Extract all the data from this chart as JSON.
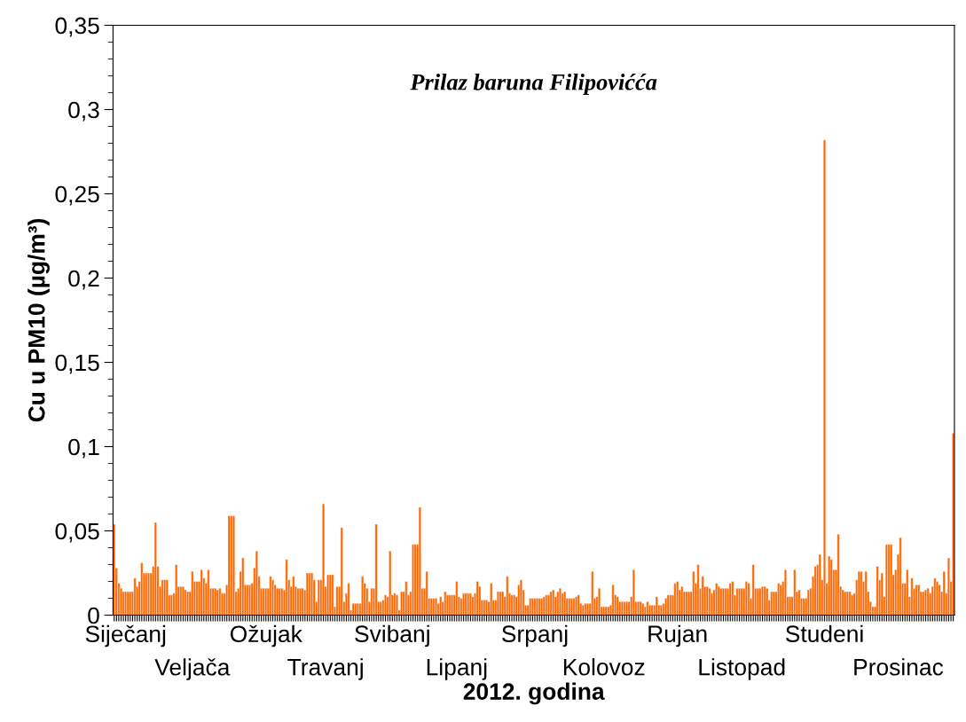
{
  "chart_data": {
    "type": "bar",
    "title": "Prilaz baruna Filipovićća",
    "xlabel": "2012. godina",
    "ylabel": "Cu u PM10 (µg/m³)",
    "color": "#ff6600",
    "ylim": [
      0,
      0.35
    ],
    "yticks": [
      0,
      {
        "value": 0.05,
        "label": "0,05"
      },
      {
        "value": 0.1,
        "label": "0,1"
      },
      {
        "value": 0.15,
        "label": "0,15"
      },
      {
        "value": 0.2,
        "label": "0,2"
      },
      {
        "value": 0.25,
        "label": "0,25"
      },
      {
        "value": 0.3,
        "label": "0,3"
      },
      {
        "value": 0.35,
        "label": "0,35"
      }
    ],
    "grid": false,
    "legend": false,
    "categories": [
      null,
      null,
      null,
      null,
      null,
      "Siječanj",
      null,
      null,
      null,
      null,
      null,
      null,
      null,
      null,
      null,
      null,
      null,
      null,
      null,
      null,
      null,
      null,
      null,
      null,
      null,
      null,
      null,
      null,
      null,
      null,
      null,
      null,
      null,
      null,
      "Veljača",
      null,
      null,
      null,
      null,
      null,
      null,
      null,
      null,
      null,
      null,
      null,
      null,
      null,
      null,
      null,
      null,
      null,
      null,
      null,
      null,
      null,
      null,
      null,
      null,
      null,
      null,
      null,
      null,
      null,
      null,
      null,
      "Ožujak",
      null,
      null,
      null,
      null,
      null,
      null,
      null,
      null,
      null,
      null,
      null,
      null,
      null,
      null,
      null,
      null,
      null,
      null,
      null,
      null,
      null,
      null,
      null,
      null,
      null,
      "Travanj",
      null,
      null,
      null,
      null,
      null,
      null,
      null,
      null,
      null,
      null,
      null,
      null,
      null,
      null,
      null,
      null,
      null,
      null,
      null,
      null,
      null,
      null,
      null,
      null,
      null,
      null,
      null,
      null,
      "Svibanj",
      null,
      null,
      null,
      null,
      null,
      null,
      null,
      null,
      null,
      null,
      null,
      null,
      null,
      null,
      null,
      null,
      null,
      null,
      null,
      null,
      null,
      null,
      null,
      null,
      null,
      null,
      null,
      "Lipanj",
      null,
      null,
      null,
      null,
      null,
      null,
      null,
      null,
      null,
      null,
      null,
      null,
      null,
      null,
      null,
      null,
      null,
      null,
      null,
      null,
      null,
      null,
      null,
      null,
      null,
      null,
      null,
      null,
      null,
      null,
      null,
      null,
      null,
      "Srpanj",
      null,
      null,
      null,
      null,
      null,
      null,
      null,
      null,
      null,
      null,
      null,
      null,
      null,
      null,
      null,
      null,
      null,
      null,
      null,
      null,
      null,
      null,
      null,
      null,
      null,
      null,
      null,
      null,
      null,
      "Kolovoz",
      null,
      null,
      null,
      null,
      null,
      null,
      null,
      null,
      null,
      null,
      null,
      null,
      null,
      null,
      null,
      null,
      null,
      null,
      null,
      null,
      null,
      null,
      null,
      null,
      null,
      null,
      null,
      null,
      null,
      null,
      null,
      "Rujan",
      null,
      null,
      null,
      null,
      null,
      null,
      null,
      null,
      null,
      null,
      null,
      null,
      null,
      null,
      null,
      null,
      null,
      null,
      null,
      null,
      null,
      null,
      null,
      null,
      null,
      null,
      null,
      "Listopad",
      null,
      null,
      null,
      null,
      null,
      null,
      null,
      null,
      null,
      null,
      null,
      null,
      null,
      null,
      null,
      null,
      null,
      null,
      null,
      null,
      null,
      null,
      null,
      null,
      null,
      null,
      null,
      null,
      null,
      null,
      null,
      null,
      null,
      null,
      null,
      "Studeni",
      null,
      null,
      null,
      null,
      null,
      null,
      null,
      null,
      null,
      null,
      null,
      null,
      null,
      null,
      null,
      null,
      null,
      null,
      null,
      null,
      null,
      null,
      null,
      null,
      null,
      null,
      null,
      null,
      null,
      null,
      null,
      "Prosinac",
      null,
      null,
      null,
      null,
      null,
      null,
      null,
      null,
      null,
      null,
      null,
      null,
      null,
      null,
      null,
      null,
      null,
      null,
      null,
      null,
      null,
      null,
      null,
      null
    ],
    "values": [
      0.054,
      0.028,
      0.019,
      0.016,
      0.014,
      0.014,
      0.014,
      0.014,
      0.014,
      0.022,
      0.017,
      0.02,
      0.031,
      0.025,
      0.025,
      0.025,
      0.025,
      0.029,
      0.055,
      0.029,
      0.017,
      0.021,
      0.021,
      0.021,
      0.012,
      0.012,
      0.013,
      0.03,
      0.017,
      0.017,
      0.017,
      0.015,
      0.014,
      0.014,
      0.026,
      0.02,
      0.02,
      0.02,
      0.027,
      0.022,
      0.019,
      0.027,
      0.016,
      0.016,
      0.016,
      0.015,
      0.016,
      0.013,
      0.013,
      0.018,
      0.059,
      0.059,
      0.059,
      0.014,
      0.016,
      0.026,
      0.034,
      0.018,
      0.018,
      0.018,
      0.019,
      0.028,
      0.038,
      0.023,
      0.016,
      0.016,
      0.016,
      0.016,
      0.023,
      0.021,
      0.018,
      0.016,
      0.016,
      0.016,
      0.015,
      0.033,
      0.021,
      0.017,
      0.023,
      0.017,
      0.016,
      0.016,
      0.016,
      0.015,
      0.025,
      0.025,
      0.025,
      0.021,
      0.008,
      0.021,
      0.021,
      0.066,
      0.017,
      0.024,
      0.024,
      0.024,
      0.005,
      0.017,
      0.017,
      0.052,
      0.008,
      0.013,
      0.019,
      0.003,
      0.007,
      0.007,
      0.007,
      0.007,
      0.023,
      0.019,
      0.016,
      0.008,
      0.016,
      0.016,
      0.054,
      0.008,
      0.008,
      0.009,
      0.012,
      0.011,
      0.038,
      0.012,
      0.013,
      0.012,
      0.003,
      0.014,
      0.014,
      0.02,
      0.012,
      0.014,
      0.042,
      0.042,
      0.042,
      0.064,
      0.016,
      0.016,
      0.026,
      0.01,
      0.01,
      0.01,
      0.01,
      0.007,
      0.011,
      0.008,
      0.014,
      0.012,
      0.012,
      0.012,
      0.012,
      0.02,
      0.011,
      0.01,
      0.013,
      0.013,
      0.013,
      0.013,
      0.011,
      0.013,
      0.02,
      0.017,
      0.009,
      0.009,
      0.009,
      0.008,
      0.019,
      0.009,
      0.009,
      0.014,
      0.014,
      0.014,
      0.011,
      0.023,
      0.013,
      0.012,
      0.012,
      0.011,
      0.018,
      0.021,
      0.015,
      0.006,
      0.006,
      0.01,
      0.01,
      0.01,
      0.01,
      0.01,
      0.01,
      0.011,
      0.012,
      0.012,
      0.014,
      0.015,
      0.011,
      0.014,
      0.016,
      0.013,
      0.014,
      0.01,
      0.01,
      0.01,
      0.01,
      0.011,
      0.012,
      0.007,
      0.006,
      0.007,
      0.007,
      0.007,
      0.026,
      0.01,
      0.011,
      0.016,
      0.005,
      0.005,
      0.005,
      0.005,
      0.006,
      0.018,
      0.012,
      0.011,
      0.008,
      0.008,
      0.008,
      0.008,
      0.008,
      0.011,
      0.027,
      0.008,
      0.008,
      0.008,
      0.007,
      0.005,
      0.008,
      0.006,
      0.006,
      0.006,
      0.011,
      0.006,
      0.006,
      0.007,
      0.01,
      0.012,
      0.012,
      0.012,
      0.019,
      0.02,
      0.015,
      0.017,
      0.014,
      0.014,
      0.014,
      0.014,
      0.026,
      0.019,
      0.03,
      0.016,
      0.023,
      0.017,
      0.017,
      0.016,
      0.013,
      0.015,
      0.019,
      0.017,
      0.016,
      0.016,
      0.016,
      0.016,
      0.019,
      0.02,
      0.012,
      0.016,
      0.016,
      0.016,
      0.016,
      0.02,
      0.019,
      0.01,
      0.03,
      0.016,
      0.016,
      0.016,
      0.017,
      0.017,
      0.016,
      0.009,
      0.014,
      0.014,
      0.014,
      0.019,
      0.018,
      0.02,
      0.027,
      0.011,
      0.011,
      0.011,
      0.027,
      0.014,
      0.015,
      0.01,
      0.01,
      0.01,
      0.015,
      0.016,
      0.023,
      0.029,
      0.03,
      0.036,
      0.021,
      0.282,
      0.019,
      0.035,
      0.033,
      0.027,
      0.027,
      0.048,
      0.017,
      0.015,
      0.014,
      0.014,
      0.014,
      0.012,
      0.013,
      0.021,
      0.026,
      0.026,
      0.02,
      0.026,
      0.014,
      0.008,
      0.005,
      0.005,
      0.029,
      0.021,
      0.025,
      0.011,
      0.042,
      0.042,
      0.042,
      0.024,
      0.027,
      0.036,
      0.046,
      0.019,
      0.019,
      0.027,
      0.011,
      0.022,
      0.016,
      0.018,
      0.018,
      0.014,
      0.014,
      0.015,
      0.016,
      0.013,
      0.017,
      0.022,
      0.02,
      0.018,
      0.014,
      0.026,
      0.013,
      0.034,
      0.02,
      0.108
    ]
  }
}
